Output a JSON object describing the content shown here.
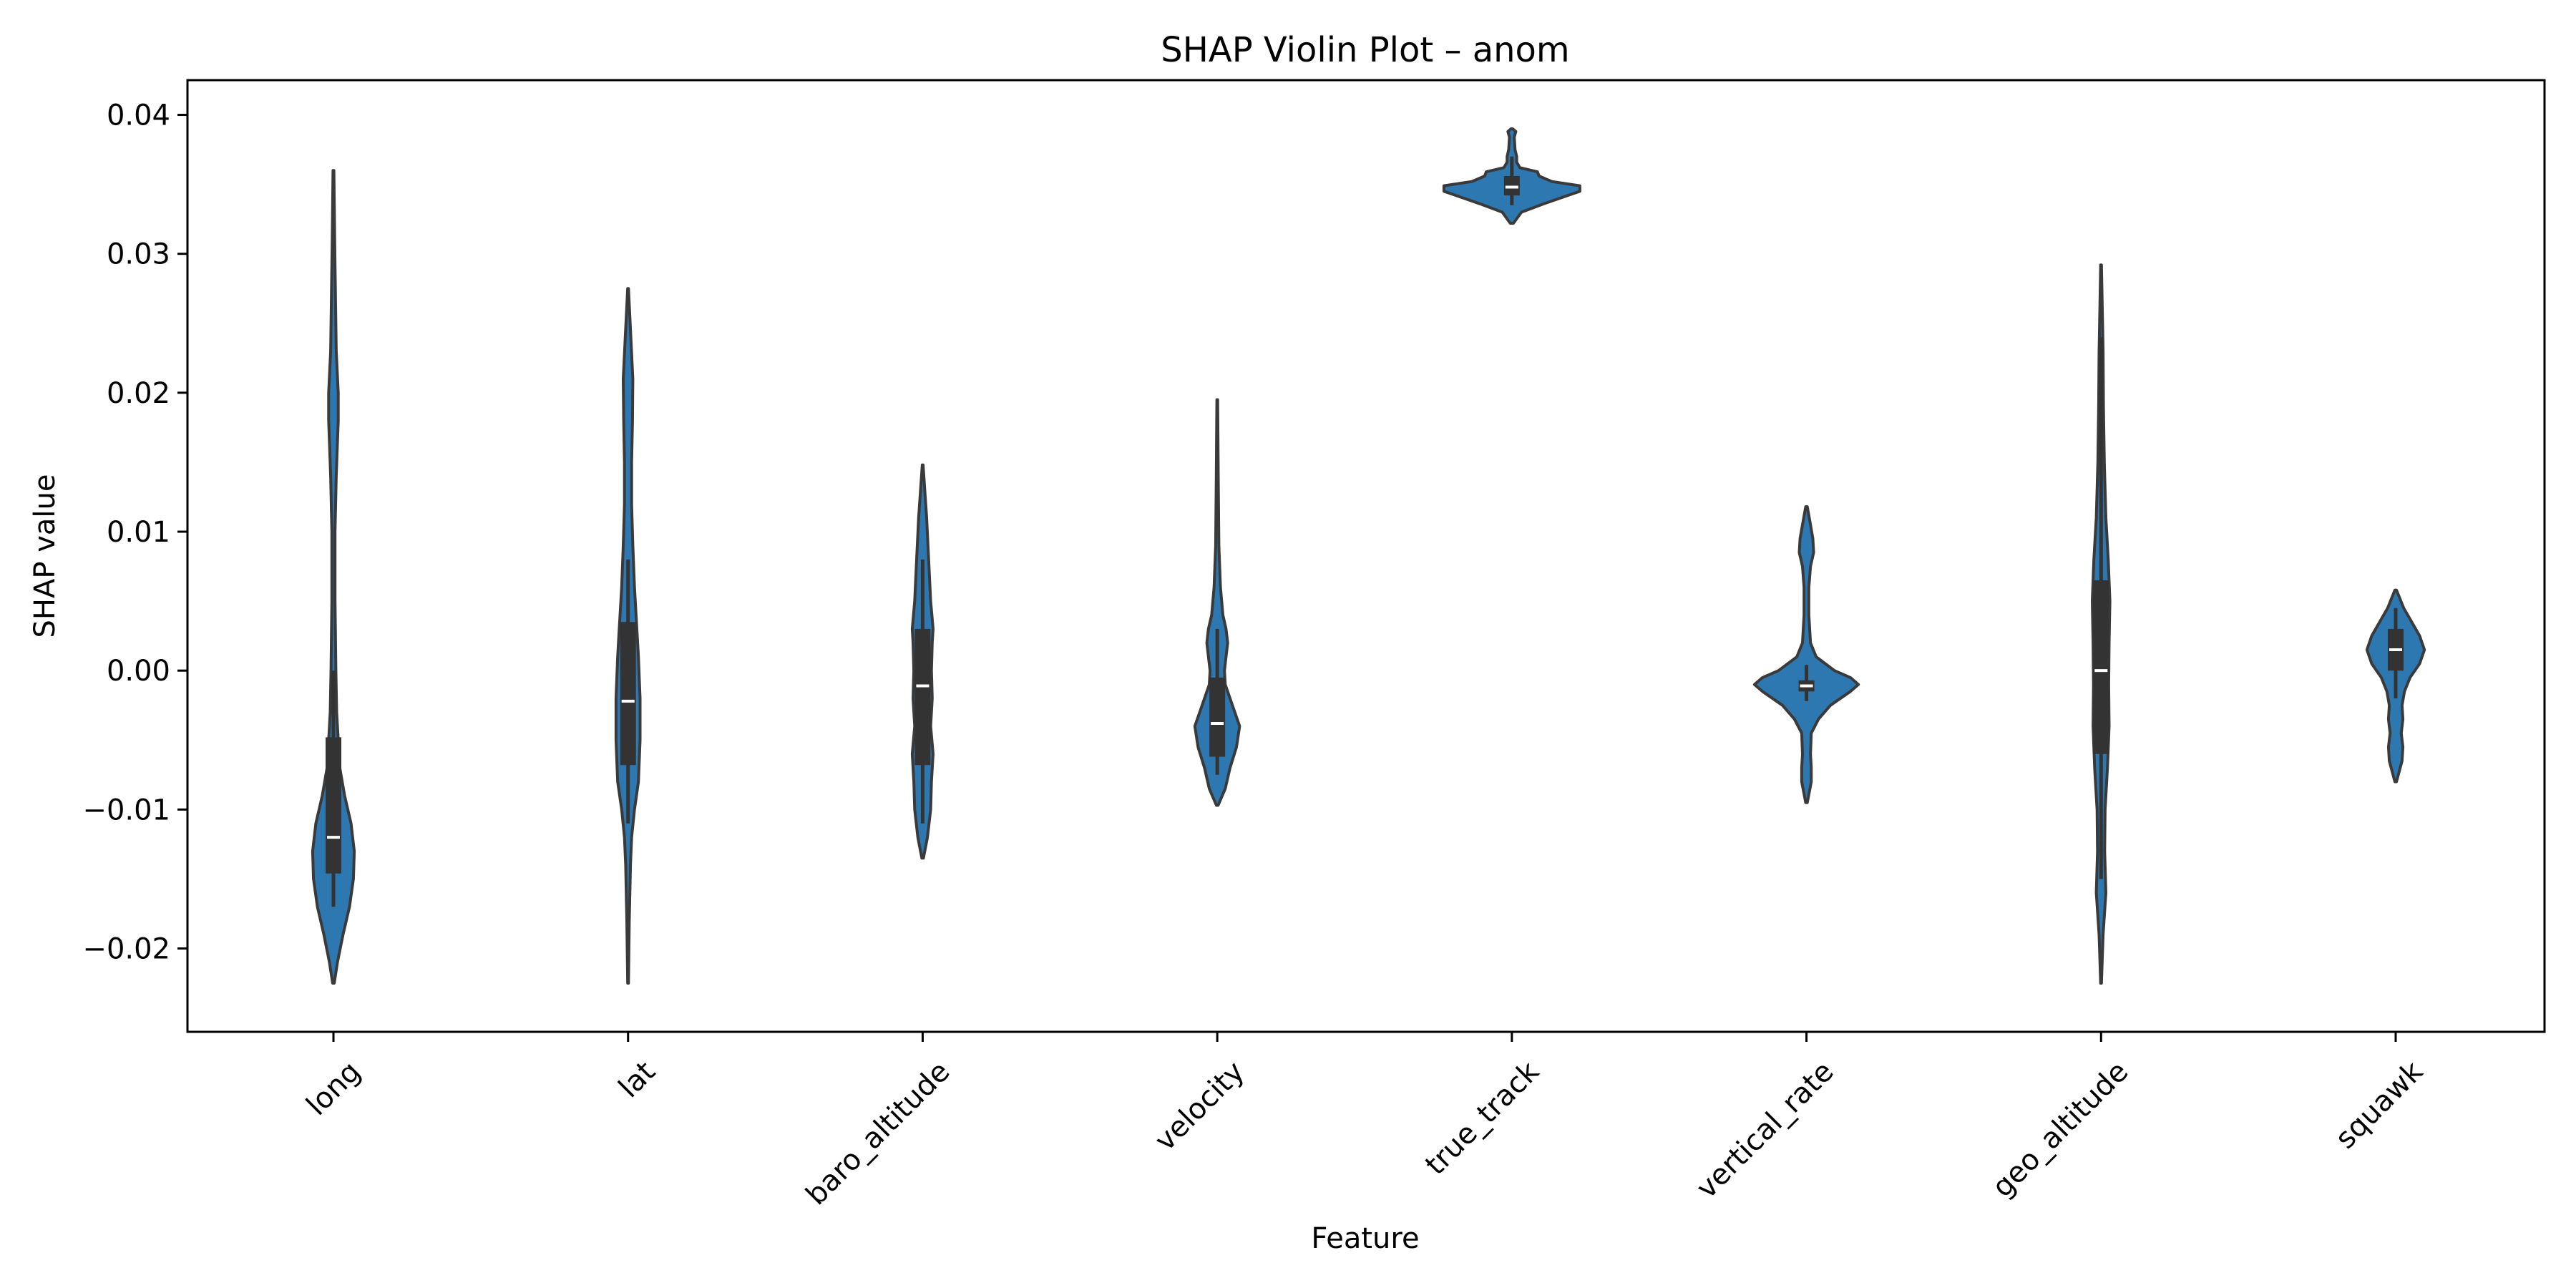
{
  "chart_data": {
    "type": "violin",
    "title": "SHAP Violin Plot – anom",
    "xlabel": "Feature",
    "ylabel": "SHAP value",
    "ylim": [
      -0.026,
      0.0425
    ],
    "yticks": [
      0.04,
      0.03,
      0.02,
      0.01,
      0.0,
      -0.01,
      -0.02
    ],
    "ytick_labels": [
      "0.04",
      "0.03",
      "0.02",
      "0.01",
      "0.00",
      "−0.01",
      "−0.02"
    ],
    "grid": false,
    "fill_color": "#2e78b2",
    "edge_color": "#3a3a3a",
    "categories": [
      "long",
      "lat",
      "baro_altitude",
      "velocity",
      "true_track",
      "vertical_rate",
      "geo_altitude",
      "squawk"
    ],
    "violins": [
      {
        "name": "long",
        "min": -0.0225,
        "max": 0.036,
        "q1": -0.0146,
        "median": -0.012,
        "q3": -0.0048,
        "whisker_low": -0.017,
        "whisker_high": 0.0,
        "density": [
          [
            -0.0225,
            0.1
          ],
          [
            -0.021,
            0.5
          ],
          [
            -0.019,
            1.2
          ],
          [
            -0.017,
            2.0
          ],
          [
            -0.015,
            2.5
          ],
          [
            -0.013,
            2.6
          ],
          [
            -0.011,
            2.2
          ],
          [
            -0.009,
            1.4
          ],
          [
            -0.007,
            0.8
          ],
          [
            -0.005,
            0.6
          ],
          [
            -0.003,
            0.4
          ],
          [
            0.0,
            0.3
          ],
          [
            0.005,
            0.2
          ],
          [
            0.01,
            0.2
          ],
          [
            0.014,
            0.35
          ],
          [
            0.018,
            0.6
          ],
          [
            0.02,
            0.6
          ],
          [
            0.023,
            0.35
          ],
          [
            0.027,
            0.25
          ],
          [
            0.031,
            0.15
          ],
          [
            0.036,
            0.05
          ]
        ]
      },
      {
        "name": "lat",
        "min": -0.0225,
        "max": 0.0275,
        "q1": -0.0068,
        "median": -0.0022,
        "q3": 0.0035,
        "whisker_low": -0.011,
        "whisker_high": 0.008,
        "density": [
          [
            -0.0225,
            0.05
          ],
          [
            -0.018,
            0.15
          ],
          [
            -0.014,
            0.3
          ],
          [
            -0.012,
            0.45
          ],
          [
            -0.01,
            0.8
          ],
          [
            -0.008,
            1.3
          ],
          [
            -0.005,
            1.5
          ],
          [
            -0.002,
            1.5
          ],
          [
            0.001,
            1.3
          ],
          [
            0.003,
            1.1
          ],
          [
            0.006,
            0.8
          ],
          [
            0.009,
            0.6
          ],
          [
            0.012,
            0.45
          ],
          [
            0.015,
            0.45
          ],
          [
            0.018,
            0.55
          ],
          [
            0.021,
            0.6
          ],
          [
            0.024,
            0.35
          ],
          [
            0.0275,
            0.05
          ]
        ]
      },
      {
        "name": "baro_altitude",
        "min": -0.0135,
        "max": 0.0148,
        "q1": -0.0068,
        "median": -0.0011,
        "q3": 0.003,
        "whisker_low": -0.011,
        "whisker_high": 0.008,
        "density": [
          [
            -0.0135,
            0.1
          ],
          [
            -0.012,
            0.6
          ],
          [
            -0.01,
            1.0
          ],
          [
            -0.008,
            1.1
          ],
          [
            -0.006,
            1.3
          ],
          [
            -0.004,
            1.0
          ],
          [
            -0.002,
            1.2
          ],
          [
            0.0,
            1.1
          ],
          [
            0.002,
            1.2
          ],
          [
            0.003,
            1.3
          ],
          [
            0.005,
            1.0
          ],
          [
            0.008,
            0.75
          ],
          [
            0.011,
            0.5
          ],
          [
            0.0148,
            0.05
          ]
        ]
      },
      {
        "name": "velocity",
        "min": -0.0097,
        "max": 0.0195,
        "q1": -0.0062,
        "median": -0.0038,
        "q3": -0.0005,
        "whisker_low": -0.0075,
        "whisker_high": 0.003,
        "density": [
          [
            -0.0097,
            0.1
          ],
          [
            -0.0085,
            1.0
          ],
          [
            -0.007,
            1.6
          ],
          [
            -0.0055,
            2.4
          ],
          [
            -0.004,
            2.8
          ],
          [
            -0.003,
            2.2
          ],
          [
            -0.002,
            1.6
          ],
          [
            -0.001,
            1.0
          ],
          [
            0.0,
            0.9
          ],
          [
            0.001,
            1.1
          ],
          [
            0.002,
            1.3
          ],
          [
            0.003,
            1.1
          ],
          [
            0.004,
            0.7
          ],
          [
            0.006,
            0.4
          ],
          [
            0.009,
            0.2
          ],
          [
            0.014,
            0.12
          ],
          [
            0.0195,
            0.05
          ]
        ]
      },
      {
        "name": "true_track",
        "min": 0.0322,
        "max": 0.039,
        "q1": 0.0342,
        "median": 0.0348,
        "q3": 0.0356,
        "whisker_low": 0.0335,
        "whisker_high": 0.037,
        "density": [
          [
            0.0322,
            0.2
          ],
          [
            0.033,
            1.2
          ],
          [
            0.0336,
            4.0
          ],
          [
            0.034,
            6.0
          ],
          [
            0.0345,
            8.5
          ],
          [
            0.0349,
            8.5
          ],
          [
            0.0352,
            5.0
          ],
          [
            0.0356,
            3.4
          ],
          [
            0.0359,
            3.2
          ],
          [
            0.0362,
            1.0
          ],
          [
            0.0366,
            0.6
          ],
          [
            0.037,
            0.6
          ],
          [
            0.0375,
            0.4
          ],
          [
            0.0384,
            0.3
          ],
          [
            0.0388,
            0.5
          ],
          [
            0.039,
            0.1
          ]
        ]
      },
      {
        "name": "vertical_rate",
        "min": -0.0095,
        "max": 0.0118,
        "q1": -0.0015,
        "median": -0.0011,
        "q3": -0.0007,
        "whisker_low": -0.0022,
        "whisker_high": 0.0004,
        "density": [
          [
            -0.0095,
            0.1
          ],
          [
            -0.008,
            0.6
          ],
          [
            -0.007,
            0.6
          ],
          [
            -0.006,
            0.5
          ],
          [
            -0.0045,
            0.6
          ],
          [
            -0.0035,
            1.5
          ],
          [
            -0.0025,
            3.0
          ],
          [
            -0.0015,
            5.5
          ],
          [
            -0.001,
            6.5
          ],
          [
            -0.0005,
            5.5
          ],
          [
            0.0,
            3.5
          ],
          [
            0.001,
            1.2
          ],
          [
            0.002,
            0.5
          ],
          [
            0.004,
            0.3
          ],
          [
            0.006,
            0.3
          ],
          [
            0.0075,
            0.5
          ],
          [
            0.0085,
            0.9
          ],
          [
            0.0095,
            0.8
          ],
          [
            0.0105,
            0.5
          ],
          [
            0.0118,
            0.1
          ]
        ]
      },
      {
        "name": "geo_altitude",
        "min": -0.0225,
        "max": 0.0292,
        "q1": -0.006,
        "median": 0.0,
        "q3": 0.0065,
        "whisker_low": -0.015,
        "whisker_high": 0.024,
        "density": [
          [
            -0.0225,
            0.05
          ],
          [
            -0.019,
            0.25
          ],
          [
            -0.016,
            0.6
          ],
          [
            -0.013,
            0.45
          ],
          [
            -0.01,
            0.5
          ],
          [
            -0.007,
            0.8
          ],
          [
            -0.004,
            1.0
          ],
          [
            -0.001,
            0.95
          ],
          [
            0.002,
            1.0
          ],
          [
            0.005,
            1.1
          ],
          [
            0.008,
            0.9
          ],
          [
            0.011,
            0.6
          ],
          [
            0.015,
            0.4
          ],
          [
            0.019,
            0.3
          ],
          [
            0.023,
            0.25
          ],
          [
            0.026,
            0.15
          ],
          [
            0.0292,
            0.05
          ]
        ]
      },
      {
        "name": "squawk",
        "min": -0.008,
        "max": 0.0058,
        "q1": 0.0,
        "median": 0.0015,
        "q3": 0.003,
        "whisker_low": -0.002,
        "whisker_high": 0.0045,
        "density": [
          [
            -0.008,
            0.1
          ],
          [
            -0.0065,
            0.8
          ],
          [
            -0.0055,
            0.9
          ],
          [
            -0.0045,
            0.7
          ],
          [
            -0.0035,
            0.9
          ],
          [
            -0.0025,
            0.8
          ],
          [
            -0.0015,
            1.1
          ],
          [
            -0.0005,
            1.8
          ],
          [
            0.0005,
            3.0
          ],
          [
            0.0015,
            3.6
          ],
          [
            0.0025,
            3.0
          ],
          [
            0.0035,
            2.0
          ],
          [
            0.0045,
            1.0
          ],
          [
            0.0058,
            0.1
          ]
        ]
      }
    ]
  }
}
